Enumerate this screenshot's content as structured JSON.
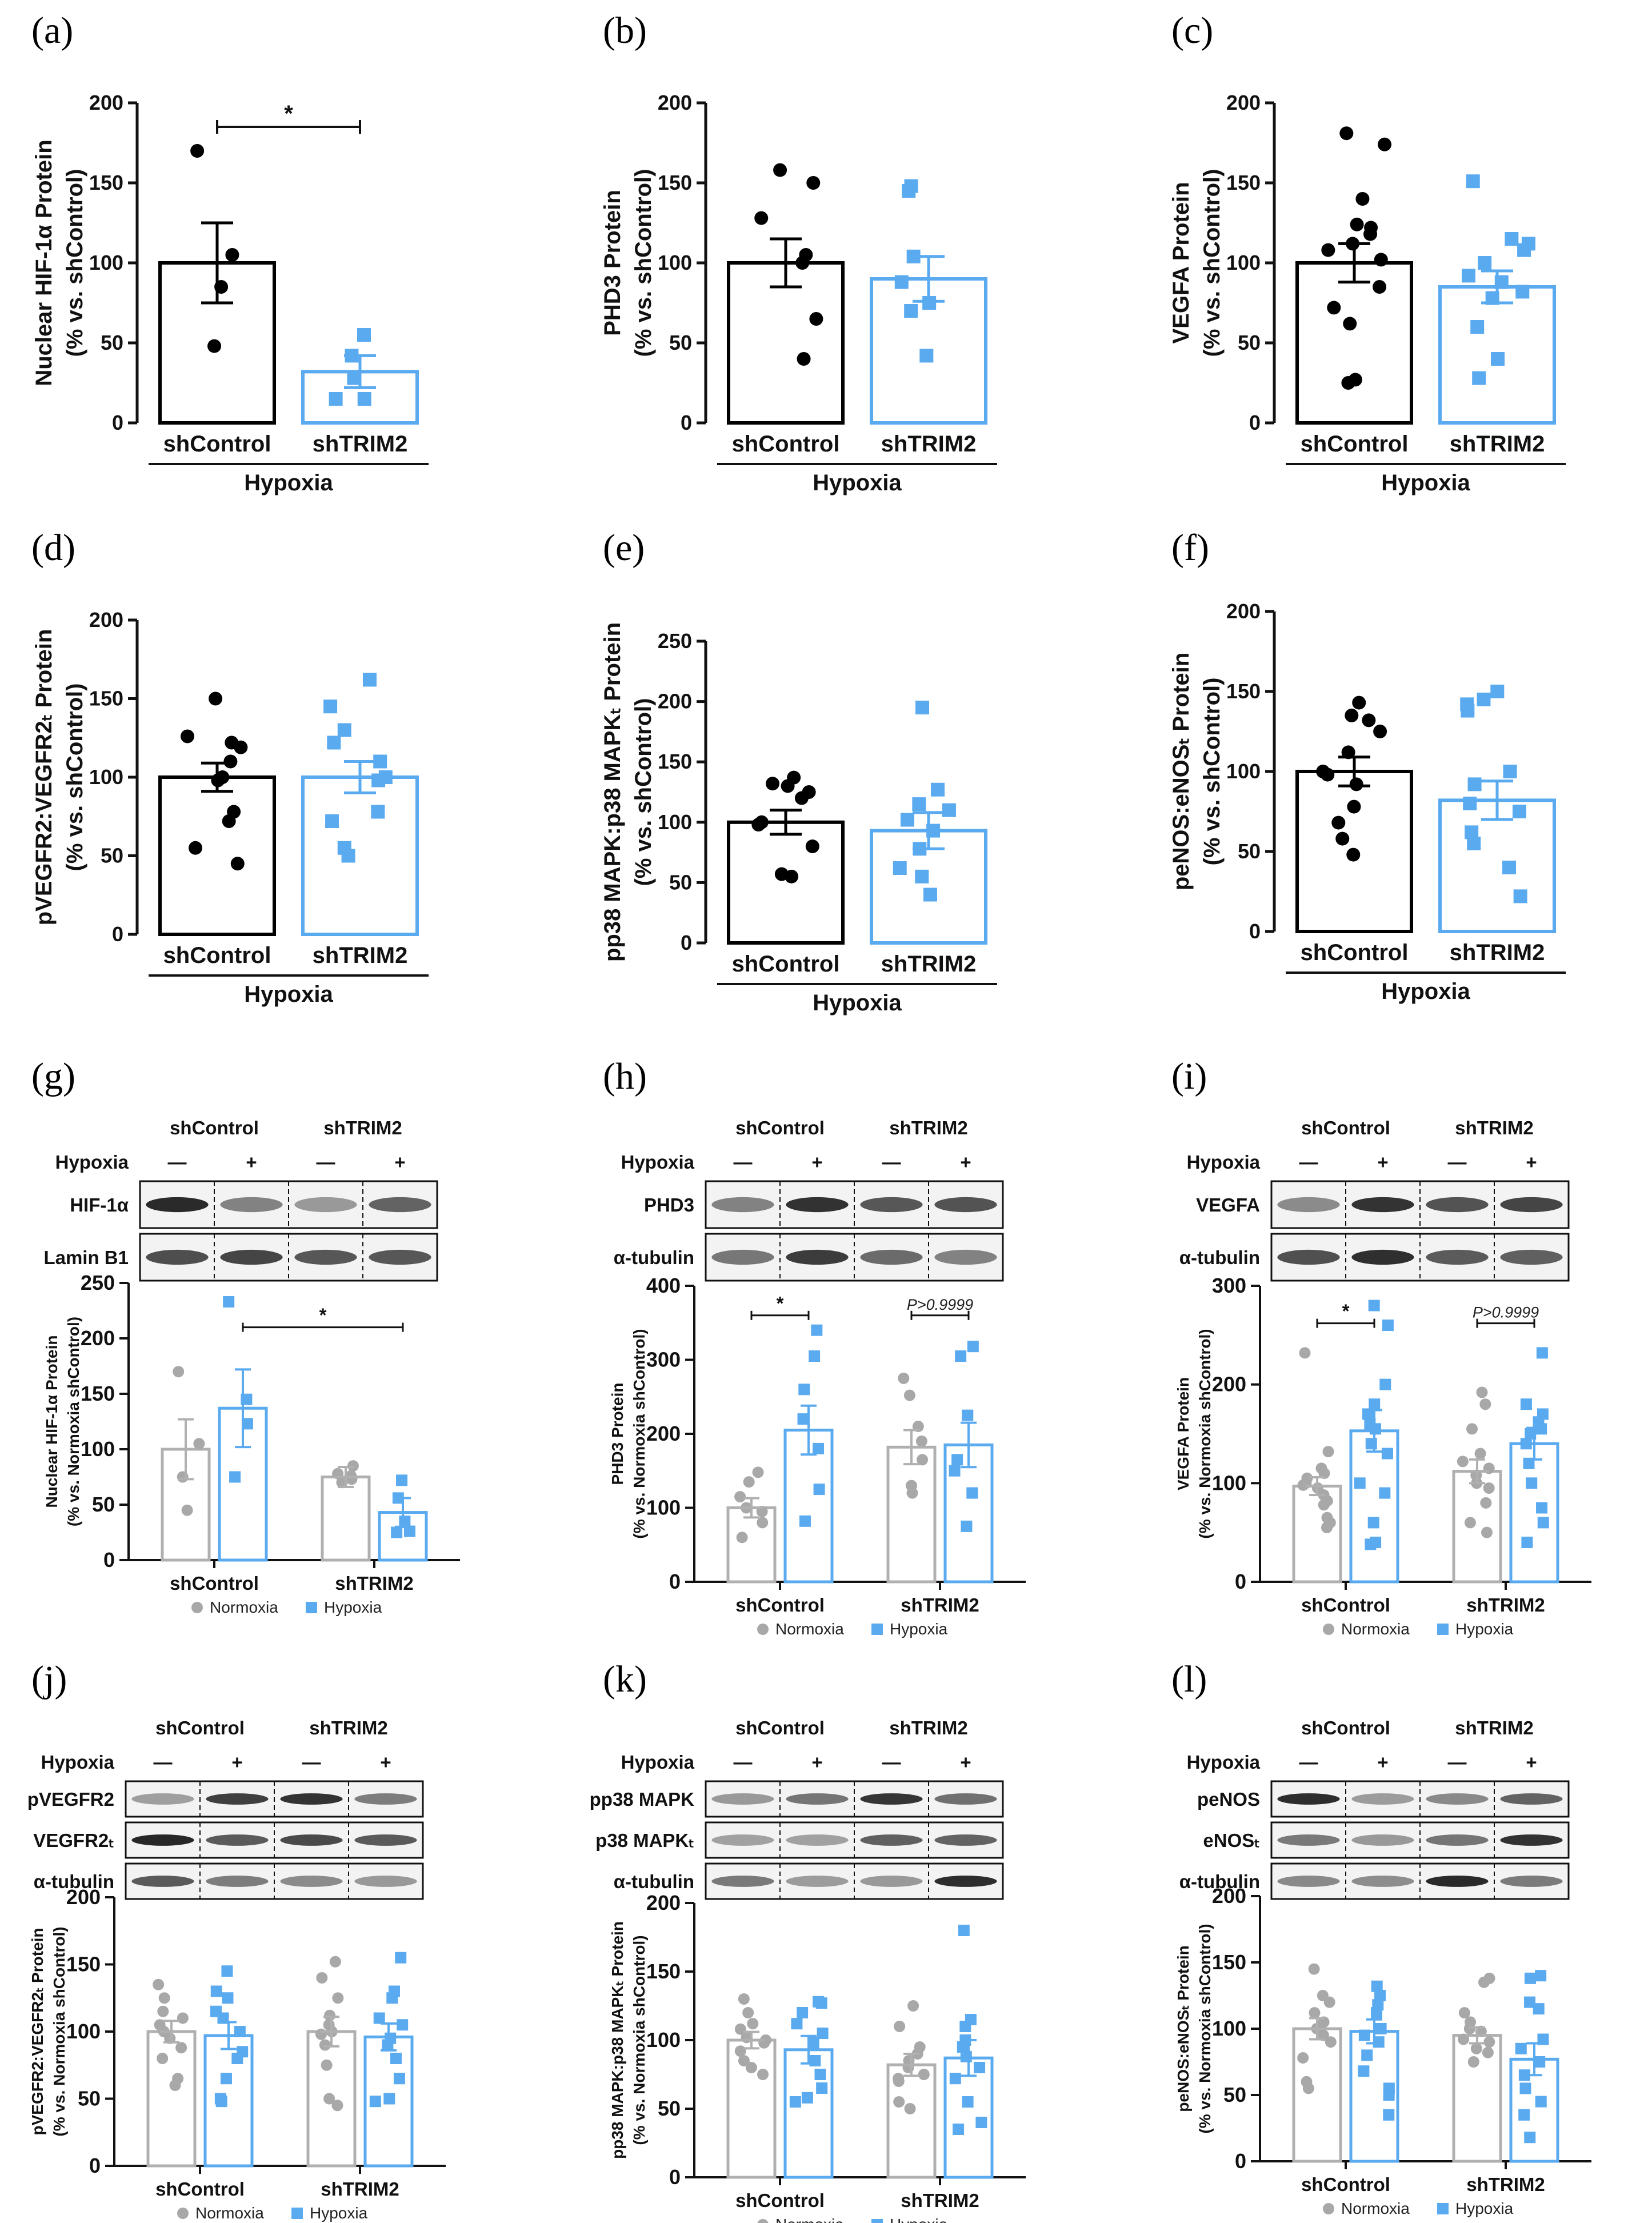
{
  "colors": {
    "control": "#000000",
    "trim2": "#5aaaf0",
    "normoxia": "#b0b0b0",
    "normoxia_point": "#a8a8a8"
  },
  "legend": {
    "normoxia": "Normoxia",
    "hypoxia": "Hypoxia"
  },
  "blot_header": {
    "shcontrol": "shControl",
    "shtrim2": "shTRIM2",
    "hypoxia": "Hypoxia",
    "minus": "—",
    "plus": "+"
  },
  "chart_data": [
    {
      "id": "a",
      "panel_label": "(a)",
      "type": "bar",
      "ylabel": [
        "Nuclear HIF-1α Protein",
        "(% vs. shControl)"
      ],
      "ylim": [
        0,
        200
      ],
      "yticks": [
        0,
        50,
        100,
        150,
        200
      ],
      "categories": [
        "shControl",
        "shTRIM2"
      ],
      "group_label": "Hypoxia",
      "series": [
        {
          "name": "shControl",
          "mean": 100,
          "sem": 25,
          "points": [
            170,
            105,
            85,
            48
          ]
        },
        {
          "name": "shTRIM2",
          "mean": 32,
          "sem": 10,
          "points": [
            55,
            42,
            28,
            15,
            15
          ]
        }
      ],
      "annotations": [
        {
          "from": 0,
          "to": 1,
          "y": 185,
          "text": "*"
        }
      ]
    },
    {
      "id": "b",
      "panel_label": "(b)",
      "type": "bar",
      "ylabel": [
        "PHD3 Protein",
        "(% vs. shControl)"
      ],
      "ylim": [
        0,
        200
      ],
      "yticks": [
        0,
        50,
        100,
        150,
        200
      ],
      "categories": [
        "shControl",
        "shTRIM2"
      ],
      "group_label": "Hypoxia",
      "series": [
        {
          "name": "shControl",
          "mean": 100,
          "sem": 15,
          "points": [
            158,
            150,
            128,
            105,
            100,
            65,
            40
          ]
        },
        {
          "name": "shTRIM2",
          "mean": 90,
          "sem": 14,
          "points": [
            148,
            145,
            104,
            88,
            75,
            70,
            42
          ]
        }
      ],
      "annotations": []
    },
    {
      "id": "c",
      "panel_label": "(c)",
      "type": "bar",
      "ylabel": [
        "VEGFA Protein",
        "(% vs. shControl)"
      ],
      "ylim": [
        0,
        200
      ],
      "yticks": [
        0,
        50,
        100,
        150,
        200
      ],
      "categories": [
        "shControl",
        "shTRIM2"
      ],
      "group_label": "Hypoxia",
      "series": [
        {
          "name": "shControl",
          "mean": 100,
          "sem": 12,
          "points": [
            181,
            174,
            140,
            124,
            122,
            118,
            112,
            108,
            102,
            85,
            72,
            62,
            25,
            27
          ]
        },
        {
          "name": "shTRIM2",
          "mean": 85,
          "sem": 10,
          "points": [
            151,
            115,
            112,
            108,
            100,
            92,
            88,
            82,
            78,
            60,
            40,
            28
          ]
        }
      ],
      "annotations": []
    },
    {
      "id": "d",
      "panel_label": "(d)",
      "type": "bar",
      "ylabel": [
        "pVEGFR2:VEGFR2ₜ Protein",
        "(% vs. shControl)"
      ],
      "ylim": [
        0,
        200
      ],
      "yticks": [
        0,
        50,
        100,
        150,
        200
      ],
      "categories": [
        "shControl",
        "shTRIM2"
      ],
      "group_label": "Hypoxia",
      "series": [
        {
          "name": "shControl",
          "mean": 100,
          "sem": 9,
          "points": [
            150,
            126,
            122,
            119,
            110,
            100,
            98,
            78,
            72,
            55,
            45
          ]
        },
        {
          "name": "shTRIM2",
          "mean": 100,
          "sem": 10,
          "points": [
            162,
            145,
            130,
            122,
            110,
            100,
            98,
            78,
            72,
            55,
            50
          ]
        }
      ],
      "annotations": []
    },
    {
      "id": "e",
      "panel_label": "(e)",
      "type": "bar",
      "ylabel": [
        "pp38 MAPK:p38 MAPKₜ Protein",
        "(% vs. shControl)"
      ],
      "ylim": [
        0,
        250
      ],
      "yticks": [
        0,
        50,
        100,
        150,
        200,
        250
      ],
      "categories": [
        "shControl",
        "shTRIM2"
      ],
      "group_label": "Hypoxia",
      "series": [
        {
          "name": "shControl",
          "mean": 100,
          "sem": 10,
          "points": [
            137,
            132,
            130,
            125,
            120,
            100,
            98,
            80,
            57,
            55
          ]
        },
        {
          "name": "shTRIM2",
          "mean": 93,
          "sem": 15,
          "points": [
            195,
            127,
            115,
            110,
            102,
            93,
            78,
            62,
            55,
            40
          ]
        }
      ],
      "annotations": []
    },
    {
      "id": "f",
      "panel_label": "(f)",
      "type": "bar",
      "ylabel": [
        "peNOS:eNOSₜ Protein",
        "(% vs. shControl)"
      ],
      "ylim": [
        0,
        200
      ],
      "yticks": [
        0,
        50,
        100,
        150,
        200
      ],
      "categories": [
        "shControl",
        "shTRIM2"
      ],
      "group_label": "Hypoxia",
      "series": [
        {
          "name": "shControl",
          "mean": 100,
          "sem": 9,
          "points": [
            143,
            135,
            132,
            125,
            112,
            100,
            98,
            92,
            78,
            68,
            58,
            48
          ]
        },
        {
          "name": "shTRIM2",
          "mean": 82,
          "sem": 12,
          "points": [
            150,
            145,
            142,
            138,
            100,
            92,
            80,
            75,
            62,
            55,
            40,
            22
          ]
        }
      ],
      "annotations": []
    },
    {
      "id": "g",
      "panel_label": "(g)",
      "type": "bar",
      "ylabel": [
        "Nuclear HIF-1α Protein",
        "(% vs. Normoxia shControl)"
      ],
      "ylim": [
        0,
        250
      ],
      "yticks": [
        0,
        50,
        100,
        150,
        200,
        250
      ],
      "categories": [
        "shControl",
        "shTRIM2"
      ],
      "blot_rows": [
        "HIF-1α",
        "Lamin B1"
      ],
      "series": [
        {
          "name": "Normoxia",
          "group": 0,
          "mean": 100,
          "sem": 27,
          "points": [
            170,
            105,
            75,
            45
          ]
        },
        {
          "name": "Hypoxia",
          "group": 0,
          "mean": 137,
          "sem": 35,
          "points": [
            233,
            145,
            123,
            75
          ]
        },
        {
          "name": "Normoxia",
          "group": 1,
          "mean": 75,
          "sem": 9,
          "points": [
            85,
            78,
            76,
            73,
            70
          ]
        },
        {
          "name": "Hypoxia",
          "group": 1,
          "mean": 43,
          "sem": 13,
          "points": [
            72,
            56,
            35,
            26,
            25
          ]
        }
      ],
      "annotations": [
        {
          "from": 1,
          "to": 3,
          "y": 210,
          "text": "*",
          "italic": false
        }
      ]
    },
    {
      "id": "h",
      "panel_label": "(h)",
      "type": "bar",
      "ylabel": [
        "PHD3 Protein",
        "(% vs. Normoxia shControl)"
      ],
      "ylim": [
        0,
        400
      ],
      "yticks": [
        0,
        100,
        200,
        300,
        400
      ],
      "categories": [
        "shControl",
        "shTRIM2"
      ],
      "blot_rows": [
        "PHD3",
        "α-tubulin"
      ],
      "series": [
        {
          "name": "Normoxia",
          "group": 0,
          "mean": 100,
          "sem": 13,
          "points": [
            148,
            135,
            115,
            100,
            95,
            80,
            60
          ]
        },
        {
          "name": "Hypoxia",
          "group": 0,
          "mean": 205,
          "sem": 33,
          "points": [
            340,
            305,
            260,
            220,
            180,
            125,
            82
          ]
        },
        {
          "name": "Normoxia",
          "group": 1,
          "mean": 182,
          "sem": 23,
          "points": [
            275,
            252,
            210,
            190,
            165,
            130,
            120
          ]
        },
        {
          "name": "Hypoxia",
          "group": 1,
          "mean": 185,
          "sem": 30,
          "points": [
            318,
            305,
            225,
            165,
            150,
            120,
            75
          ]
        }
      ],
      "annotations": [
        {
          "from": 0,
          "to": 1,
          "y": 360,
          "text": "*",
          "italic": false
        },
        {
          "from": 2,
          "to": 3,
          "y": 360,
          "text": "P>0.9999",
          "italic": true
        }
      ]
    },
    {
      "id": "i",
      "panel_label": "(i)",
      "type": "bar",
      "ylabel": [
        "VEGFA Protein",
        "(% vs. Normoxia shControl)"
      ],
      "ylim": [
        0,
        300
      ],
      "yticks": [
        0,
        100,
        200,
        300
      ],
      "categories": [
        "shControl",
        "shTRIM2"
      ],
      "blot_rows": [
        "VEGFA",
        "α-tubulin"
      ],
      "series": [
        {
          "name": "Normoxia",
          "group": 0,
          "mean": 97,
          "sem": 9,
          "points": [
            232,
            132,
            115,
            110,
            105,
            100,
            98,
            95,
            88,
            82,
            78,
            65,
            60,
            55
          ]
        },
        {
          "name": "Hypoxia",
          "group": 0,
          "mean": 153,
          "sem": 21,
          "points": [
            280,
            260,
            200,
            180,
            170,
            160,
            155,
            140,
            130,
            100,
            90,
            60,
            40,
            38
          ]
        },
        {
          "name": "Normoxia",
          "group": 1,
          "mean": 112,
          "sem": 12,
          "points": [
            192,
            180,
            155,
            130,
            122,
            115,
            108,
            100,
            95,
            80,
            60,
            50
          ]
        },
        {
          "name": "Hypoxia",
          "group": 1,
          "mean": 140,
          "sem": 16,
          "points": [
            232,
            180,
            170,
            162,
            155,
            150,
            140,
            120,
            100,
            75,
            60,
            40
          ]
        }
      ],
      "annotations": [
        {
          "from": 0,
          "to": 1,
          "y": 262,
          "text": "*",
          "italic": false
        },
        {
          "from": 2,
          "to": 3,
          "y": 262,
          "text": "P>0.9999",
          "italic": true
        }
      ]
    },
    {
      "id": "j",
      "panel_label": "(j)",
      "type": "bar",
      "ylabel": [
        "pVEGFR2:VEGFR2ₜ Protein",
        "(% vs. Normoxia shControl)"
      ],
      "ylim": [
        0,
        200
      ],
      "yticks": [
        0,
        50,
        100,
        150,
        200
      ],
      "categories": [
        "shControl",
        "shTRIM2"
      ],
      "blot_rows": [
        "pVEGFR2",
        "VEGFR2ₜ",
        "α-tubulin"
      ],
      "series": [
        {
          "name": "Normoxia",
          "group": 0,
          "mean": 100,
          "sem": 8,
          "points": [
            135,
            125,
            115,
            110,
            105,
            100,
            95,
            88,
            80,
            65,
            60
          ]
        },
        {
          "name": "Hypoxia",
          "group": 0,
          "mean": 97,
          "sem": 10,
          "points": [
            145,
            130,
            125,
            115,
            110,
            100,
            85,
            80,
            65,
            50,
            48
          ]
        },
        {
          "name": "Normoxia",
          "group": 1,
          "mean": 100,
          "sem": 11,
          "points": [
            152,
            140,
            125,
            112,
            105,
            100,
            98,
            90,
            75,
            50,
            45
          ]
        },
        {
          "name": "Hypoxia",
          "group": 1,
          "mean": 96,
          "sem": 10,
          "points": [
            155,
            130,
            125,
            110,
            105,
            95,
            90,
            80,
            65,
            50,
            48
          ]
        }
      ],
      "annotations": []
    },
    {
      "id": "k",
      "panel_label": "(k)",
      "type": "bar",
      "ylabel": [
        "pp38 MAPK:p38 MAPKₜ Protein",
        "(% vs. Normoxia shControl)"
      ],
      "ylim": [
        0,
        200
      ],
      "yticks": [
        0,
        50,
        100,
        150,
        200
      ],
      "categories": [
        "shControl",
        "shTRIM2"
      ],
      "blot_rows": [
        "pp38 MAPK",
        "p38 MAPKₜ",
        "α-tubulin"
      ],
      "series": [
        {
          "name": "Normoxia",
          "group": 0,
          "mean": 100,
          "sem": 6,
          "points": [
            130,
            120,
            112,
            108,
            102,
            100,
            98,
            92,
            85,
            80,
            75
          ]
        },
        {
          "name": "Hypoxia",
          "group": 0,
          "mean": 93,
          "sem": 10,
          "points": [
            128,
            127,
            120,
            112,
            105,
            98,
            85,
            75,
            65,
            58,
            55
          ]
        },
        {
          "name": "Normoxia",
          "group": 1,
          "mean": 82,
          "sem": 8,
          "points": [
            125,
            110,
            95,
            90,
            85,
            80,
            75,
            72,
            70,
            55,
            50
          ]
        },
        {
          "name": "Hypoxia",
          "group": 1,
          "mean": 87,
          "sem": 13,
          "points": [
            180,
            115,
            110,
            100,
            95,
            88,
            80,
            72,
            55,
            40,
            35
          ]
        }
      ],
      "annotations": []
    },
    {
      "id": "l",
      "panel_label": "(l)",
      "type": "bar",
      "ylabel": [
        "peNOS:eNOSₜ Protein",
        "(% vs. Normoxia shControl)"
      ],
      "ylim": [
        0,
        200
      ],
      "yticks": [
        0,
        50,
        100,
        150,
        200
      ],
      "categories": [
        "shControl",
        "shTRIM2"
      ],
      "blot_rows": [
        "peNOS",
        "eNOSₜ",
        "α-tubulin"
      ],
      "series": [
        {
          "name": "Normoxia",
          "group": 0,
          "mean": 100,
          "sem": 8,
          "points": [
            145,
            125,
            120,
            112,
            105,
            100,
            95,
            90,
            78,
            60,
            55
          ]
        },
        {
          "name": "Hypoxia",
          "group": 0,
          "mean": 98,
          "sem": 9,
          "points": [
            132,
            125,
            118,
            112,
            100,
            95,
            90,
            80,
            68,
            55,
            50,
            35
          ]
        },
        {
          "name": "Normoxia",
          "group": 1,
          "mean": 95,
          "sem": 6,
          "points": [
            138,
            135,
            112,
            105,
            100,
            98,
            92,
            90,
            85,
            82,
            75
          ]
        },
        {
          "name": "Hypoxia",
          "group": 1,
          "mean": 77,
          "sem": 12,
          "points": [
            140,
            138,
            120,
            115,
            92,
            85,
            75,
            65,
            55,
            45,
            35,
            18
          ]
        }
      ],
      "annotations": []
    }
  ]
}
